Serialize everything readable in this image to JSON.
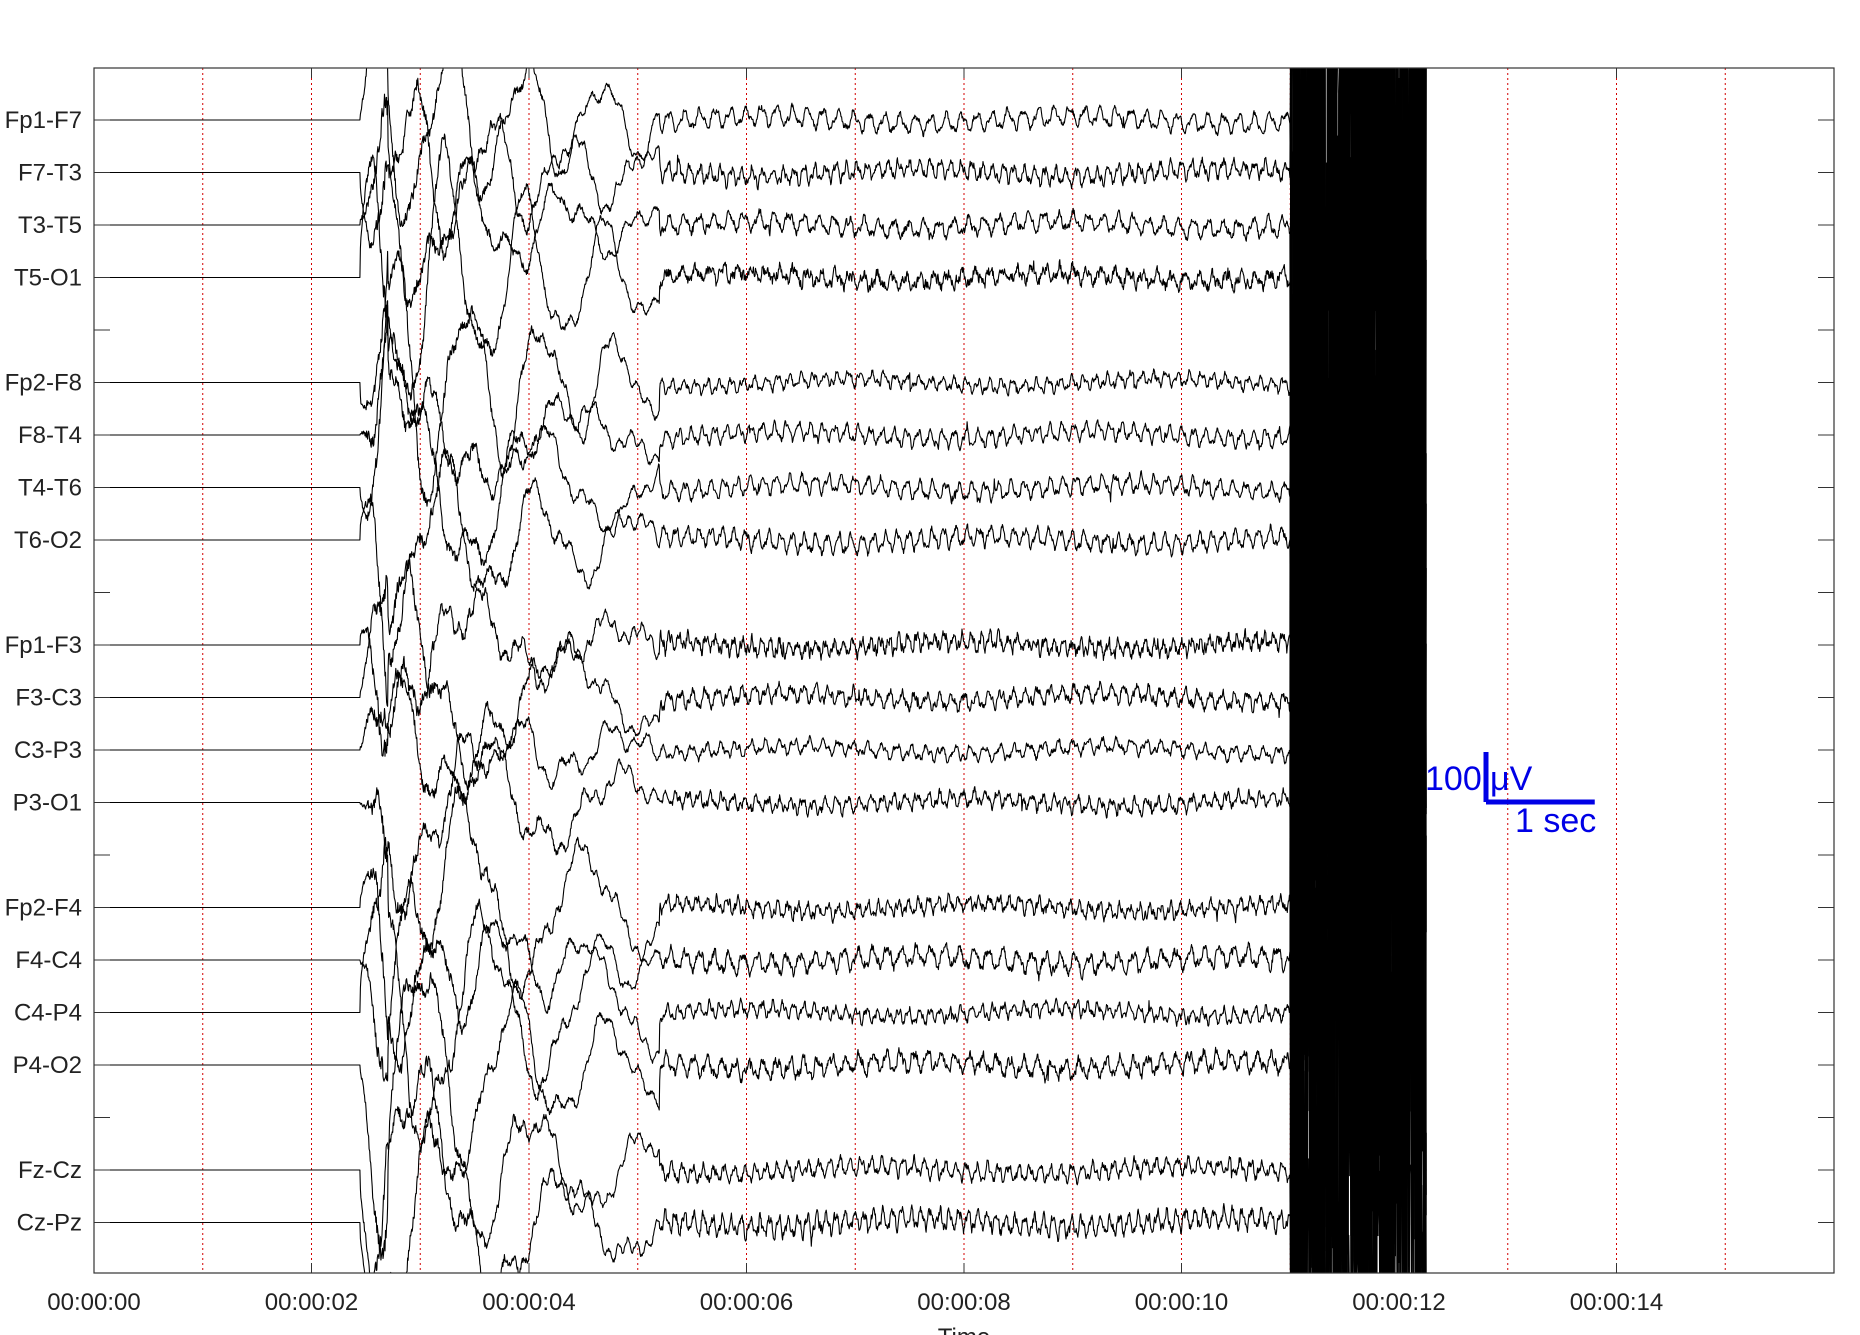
{
  "chart_data": {
    "type": "line",
    "title": "",
    "xlabel": "Time",
    "ylabel": "",
    "x_unit": "seconds",
    "xlim": [
      0,
      16
    ],
    "x_ticks": [
      0,
      2,
      4,
      6,
      8,
      10,
      12,
      14
    ],
    "x_tick_labels": [
      "00:00:00",
      "00:00:02",
      "00:00:04",
      "00:00:06",
      "00:00:08",
      "00:00:10",
      "00:00:12",
      "00:00:14"
    ],
    "minor_grid_seconds": [
      1,
      2,
      3,
      4,
      5,
      6,
      7,
      8,
      9,
      10,
      11,
      12,
      13,
      14,
      15
    ],
    "grid": true,
    "grid_style": "dotted vertical",
    "channels": [
      "Fp1-F7",
      "F7-T3",
      "T3-T5",
      "T5-O1",
      "",
      "Fp2-F8",
      "F8-T4",
      "T4-T6",
      "T6-O2",
      "",
      "Fp1-F3",
      "F3-C3",
      "C3-P3",
      "P3-O1",
      "",
      "Fp2-F4",
      "F4-C4",
      "C4-P4",
      "P4-O2",
      "",
      "Fz-Cz",
      "Cz-Pz"
    ],
    "signal_segments": {
      "flat_until_s": 2.45,
      "large_artifact_s": [
        2.45,
        5.2
      ],
      "regular_activity_s": [
        5.2,
        11.0
      ],
      "saturated_burst_s": [
        11.0,
        12.25
      ]
    },
    "scale_bar": {
      "amplitude_label": "100",
      "amplitude_unit": "μV",
      "time_label": "1 sec",
      "amplitude_uV": 100,
      "time_s": 1,
      "color": "#0000e6"
    },
    "colors": {
      "trace": "#000000",
      "grid": "#d40000",
      "axes": "#333333"
    }
  }
}
